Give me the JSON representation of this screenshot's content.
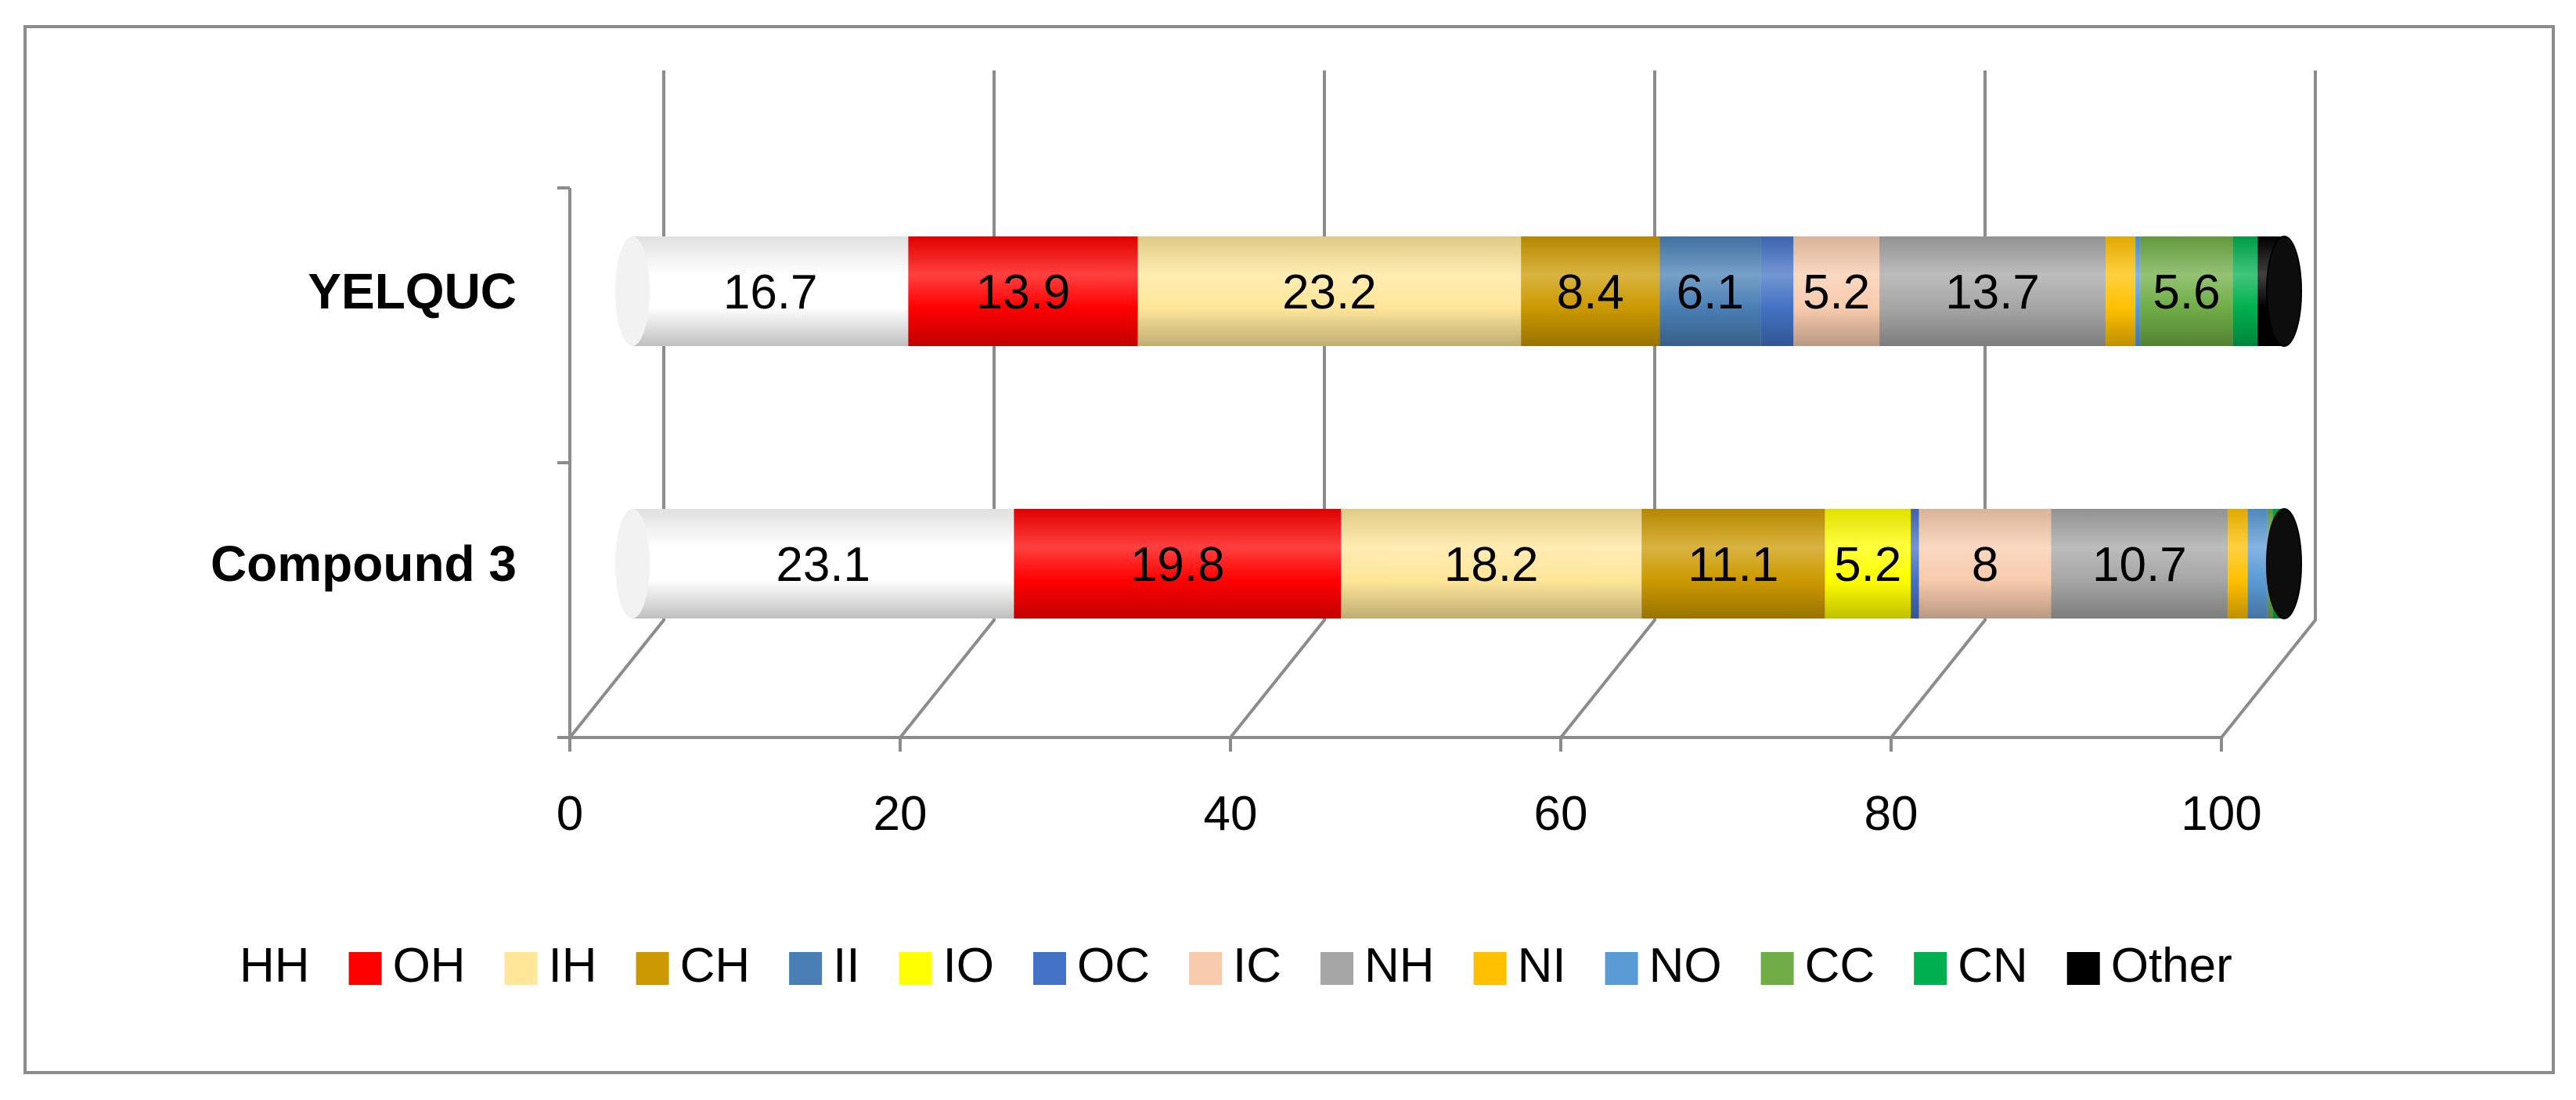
{
  "chart_data": {
    "type": "bar",
    "orientation": "horizontal",
    "stacked": true,
    "style_3d": true,
    "categories": [
      "YELQUC",
      "Compound 3"
    ],
    "xlim": [
      0,
      100
    ],
    "xticks": [
      "0",
      "20",
      "40",
      "60",
      "80",
      "100"
    ],
    "grid": true,
    "legend_position": "bottom",
    "series": [
      {
        "name": "HH",
        "color": "#ffffff",
        "values": [
          16.7,
          23.1
        ],
        "labels": [
          "16.7",
          "23.1"
        ]
      },
      {
        "name": "OH",
        "color": "#ff0000",
        "values": [
          13.9,
          19.8
        ],
        "labels": [
          "13.9",
          "19.8"
        ]
      },
      {
        "name": "IH",
        "color": "#ffe699",
        "values": [
          23.2,
          18.2
        ],
        "labels": [
          "23.2",
          "18.2"
        ]
      },
      {
        "name": "CH",
        "color": "#cc9900",
        "values": [
          8.4,
          11.1
        ],
        "labels": [
          "8.4",
          "11.1"
        ]
      },
      {
        "name": "II",
        "color": "#4a7fb5",
        "values": [
          6.1,
          0
        ],
        "labels": [
          "6.1",
          ""
        ]
      },
      {
        "name": "IO",
        "color": "#ffff00",
        "values": [
          0,
          5.2
        ],
        "labels": [
          "",
          "5.2"
        ]
      },
      {
        "name": "OC",
        "color": "#4472c4",
        "values": [
          2.0,
          0.5
        ],
        "labels": [
          "",
          ""
        ]
      },
      {
        "name": "IC",
        "color": "#f8cbad",
        "values": [
          5.2,
          8
        ],
        "labels": [
          "5.2",
          "8"
        ]
      },
      {
        "name": "NH",
        "color": "#a6a6a6",
        "values": [
          13.7,
          10.7
        ],
        "labels": [
          "13.7",
          "10.7"
        ]
      },
      {
        "name": "NI",
        "color": "#ffc000",
        "values": [
          1.8,
          1.2
        ],
        "labels": [
          "",
          ""
        ]
      },
      {
        "name": "NO",
        "color": "#5b9bd5",
        "values": [
          0.3,
          1.2
        ],
        "labels": [
          "",
          ""
        ]
      },
      {
        "name": "CC",
        "color": "#70ad47",
        "values": [
          5.6,
          0.3
        ],
        "labels": [
          "5.6",
          ""
        ]
      },
      {
        "name": "CN",
        "color": "#00b050",
        "values": [
          1.5,
          0.5
        ],
        "labels": [
          "",
          ""
        ]
      },
      {
        "name": "Other",
        "color": "#000000",
        "values": [
          1.6,
          0.2
        ],
        "labels": [
          "",
          ""
        ]
      }
    ]
  }
}
